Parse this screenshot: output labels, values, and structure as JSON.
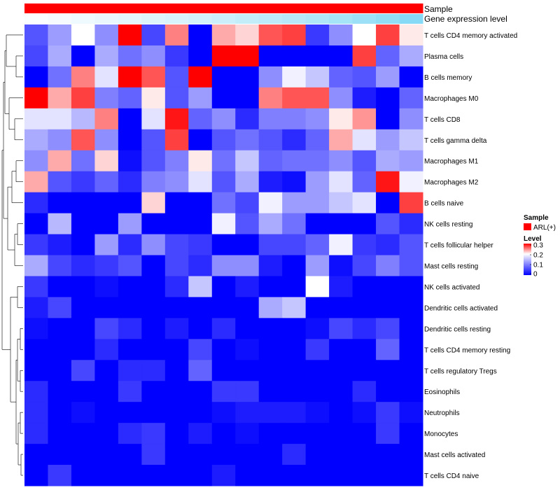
{
  "chart_data": {
    "type": "heatmap",
    "annotation_tracks": [
      "Sample",
      "Gene expression level"
    ],
    "row_labels": [
      "T cells CD4 memory activated",
      "Plasma cells",
      "B cells memory",
      "Macrophages M0",
      "T cells CD8",
      "T cells gamma delta",
      "Macrophages M1",
      "Macrophages M2",
      "B cells naive",
      "NK cells resting",
      "T cells follicular helper",
      "Mast cells resting",
      "NK cells activated",
      "Dendritic cells activated",
      "Dendritic cells resting",
      "T cells CD4 memory resting",
      "T cells regulatory  Tregs",
      "Eosinophils",
      "Neutrophils",
      "Monocytes",
      "Mast cells activated",
      "T cells CD4 naive"
    ],
    "n_columns": 17,
    "values": [
      [
        0.06,
        0.11,
        0.18,
        0.1,
        0.3,
        0.05,
        0.24,
        0.0,
        0.22,
        0.2,
        0.26,
        0.27,
        0.04,
        0.1,
        0.18,
        0.27,
        0.19
      ],
      [
        0.05,
        0.12,
        0.0,
        0.12,
        0.08,
        0.1,
        0.04,
        0.0,
        0.3,
        0.3,
        0.0,
        0.0,
        0.0,
        0.0,
        0.27,
        0.07,
        0.12
      ],
      [
        0.0,
        0.08,
        0.24,
        0.16,
        0.3,
        0.26,
        0.06,
        0.3,
        0.0,
        0.0,
        0.1,
        0.17,
        0.14,
        0.07,
        0.06,
        0.11,
        0.0
      ],
      [
        0.3,
        0.22,
        0.27,
        0.09,
        0.07,
        0.19,
        0.06,
        0.11,
        0.0,
        0.0,
        0.24,
        0.26,
        0.26,
        0.1,
        0.02,
        0.0,
        0.07
      ],
      [
        0.16,
        0.16,
        0.13,
        0.24,
        0.0,
        0.16,
        0.29,
        0.07,
        0.1,
        0.03,
        0.09,
        0.09,
        0.1,
        0.19,
        0.23,
        0.0,
        0.1
      ],
      [
        0.12,
        0.1,
        0.26,
        0.1,
        0.0,
        0.06,
        0.27,
        0.0,
        0.06,
        0.08,
        0.06,
        0.03,
        0.07,
        0.22,
        0.16,
        0.11,
        0.14
      ],
      [
        0.1,
        0.22,
        0.08,
        0.2,
        0.01,
        0.06,
        0.09,
        0.19,
        0.08,
        0.14,
        0.07,
        0.08,
        0.08,
        0.1,
        0.06,
        0.12,
        0.11
      ],
      [
        0.22,
        0.06,
        0.04,
        0.07,
        0.03,
        0.09,
        0.1,
        0.16,
        0.06,
        0.12,
        0.02,
        0.01,
        0.11,
        0.16,
        0.07,
        0.29,
        0.17
      ],
      [
        0.03,
        0.0,
        0.0,
        0.0,
        0.0,
        0.2,
        0.0,
        0.0,
        0.08,
        0.05,
        0.17,
        0.11,
        0.11,
        0.14,
        0.16,
        0.0,
        0.27
      ],
      [
        0.0,
        0.13,
        0.0,
        0.0,
        0.11,
        0.0,
        0.0,
        0.0,
        0.17,
        0.06,
        0.12,
        0.08,
        0.0,
        0.0,
        0.0,
        0.06,
        0.03
      ],
      [
        0.04,
        0.02,
        0.0,
        0.11,
        0.03,
        0.1,
        0.05,
        0.04,
        0.0,
        0.0,
        0.05,
        0.05,
        0.07,
        0.17,
        0.04,
        0.03,
        0.06
      ],
      [
        0.12,
        0.05,
        0.03,
        0.04,
        0.06,
        0.0,
        0.05,
        0.03,
        0.1,
        0.1,
        0.02,
        0.0,
        0.11,
        0.01,
        0.05,
        0.09,
        0.06
      ],
      [
        0.04,
        0.0,
        0.0,
        0.01,
        0.0,
        0.0,
        0.03,
        0.14,
        0.0,
        0.02,
        0.0,
        0.0,
        0.18,
        0.02,
        0.0,
        0.0,
        0.0
      ],
      [
        0.02,
        0.05,
        0.0,
        0.0,
        0.0,
        0.0,
        0.0,
        0.0,
        0.0,
        0.0,
        0.12,
        0.14,
        0.0,
        0.0,
        0.0,
        0.0,
        0.0
      ],
      [
        0.01,
        0.0,
        0.0,
        0.05,
        0.03,
        0.0,
        0.02,
        0.0,
        0.03,
        0.0,
        0.0,
        0.0,
        0.01,
        0.05,
        0.03,
        0.05,
        0.0
      ],
      [
        0.0,
        0.0,
        0.0,
        0.03,
        0.0,
        0.0,
        0.0,
        0.05,
        0.0,
        0.01,
        0.0,
        0.0,
        0.04,
        0.0,
        0.0,
        0.07,
        0.0
      ],
      [
        0.0,
        0.0,
        0.05,
        0.0,
        0.03,
        0.03,
        0.0,
        0.07,
        0.0,
        0.0,
        0.0,
        0.0,
        0.0,
        0.0,
        0.0,
        0.0,
        0.0
      ],
      [
        0.03,
        0.0,
        0.0,
        0.0,
        0.04,
        0.0,
        0.0,
        0.0,
        0.04,
        0.04,
        0.0,
        0.0,
        0.0,
        0.0,
        0.03,
        0.0,
        0.0
      ],
      [
        0.03,
        0.0,
        0.01,
        0.0,
        0.0,
        0.0,
        0.0,
        0.0,
        0.01,
        0.02,
        0.02,
        0.02,
        0.01,
        0.0,
        0.01,
        0.04,
        0.01
      ],
      [
        0.03,
        0.0,
        0.0,
        0.0,
        0.03,
        0.04,
        0.0,
        0.02,
        0.0,
        0.01,
        0.0,
        0.0,
        0.0,
        0.0,
        0.0,
        0.04,
        0.0
      ],
      [
        0.0,
        0.0,
        0.0,
        0.0,
        0.0,
        0.04,
        0.0,
        0.0,
        0.0,
        0.0,
        0.0,
        0.03,
        0.0,
        0.0,
        0.0,
        0.0,
        0.0
      ],
      [
        0.0,
        0.04,
        0.0,
        0.0,
        0.0,
        0.0,
        0.0,
        0.0,
        0.02,
        0.0,
        0.0,
        0.0,
        0.0,
        0.0,
        0.0,
        0.0,
        0.0
      ]
    ],
    "gene_expression_level": [
      0.02,
      0.05,
      0.09,
      0.12,
      0.15,
      0.18,
      0.22,
      0.25,
      0.29,
      0.33,
      0.37,
      0.41,
      0.45,
      0.5,
      0.56,
      0.62,
      0.68
    ],
    "legend": {
      "sample_title": "Sample",
      "sample_entry": "ARL(+)",
      "level_title": "Level",
      "ticks": [
        0.3,
        0.2,
        0.1,
        0
      ],
      "tick_labels": [
        "0.3",
        "0.2",
        "0.1",
        "0"
      ],
      "range": [
        0,
        0.3
      ]
    },
    "colors": {
      "low": "#0000ff",
      "mid": "#ffffff",
      "high": "#ff0000",
      "sample": "#ff0000",
      "expr_low": "#ffffff",
      "expr_high": "#4dc8f0"
    }
  }
}
